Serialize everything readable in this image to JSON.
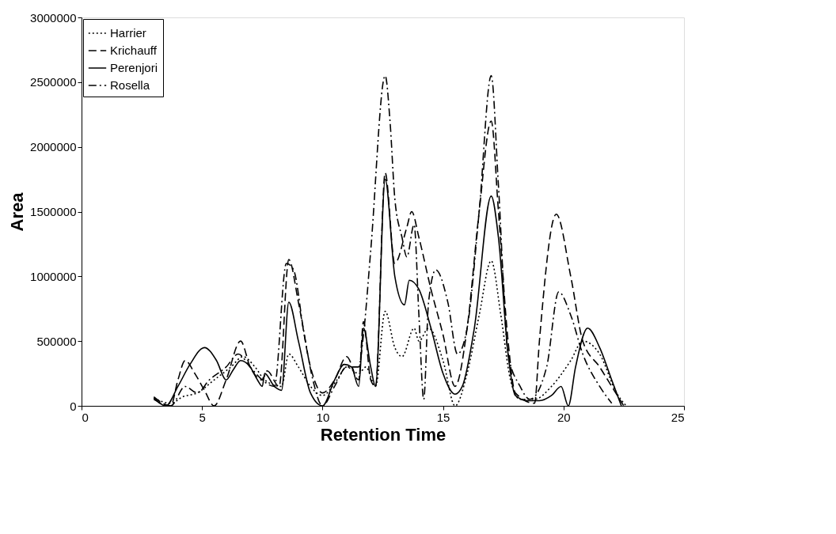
{
  "chart_data": {
    "type": "line",
    "xlabel": "Retention Time",
    "ylabel": "Area",
    "xlim": [
      0,
      25
    ],
    "xticks": [
      0,
      5,
      10,
      15,
      20,
      25
    ],
    "ylim": [
      0,
      3000000
    ],
    "yticks": [
      0,
      500000,
      1000000,
      1500000,
      2000000,
      2500000,
      3000000
    ],
    "grid": false,
    "legend": "top left",
    "marker": "none",
    "series": [
      {
        "name": "Harrier",
        "color": "#000000",
        "line_style": "dotted",
        "x": [
          3.0,
          3.7,
          4.2,
          4.8,
          5.5,
          6.2,
          6.7,
          7.2,
          7.6,
          8.3,
          8.6,
          9.0,
          9.5,
          10.0,
          10.6,
          11.0,
          11.5,
          11.8,
          12.2,
          12.6,
          13.0,
          13.3,
          13.8,
          14.0,
          14.4,
          15.0,
          15.5,
          16.0,
          16.5,
          17.0,
          17.4,
          17.8,
          18.2,
          18.8,
          19.5,
          20.3,
          20.8,
          21.5,
          22.2,
          22.6
        ],
        "values": [
          60000,
          20000,
          70000,
          100000,
          200000,
          300000,
          380000,
          300000,
          200000,
          150000,
          400000,
          300000,
          150000,
          80000,
          200000,
          300000,
          250000,
          300000,
          150000,
          730000,
          450000,
          380000,
          600000,
          500000,
          600000,
          350000,
          0,
          250000,
          700000,
          1120000,
          700000,
          200000,
          50000,
          50000,
          150000,
          350000,
          500000,
          400000,
          100000,
          0
        ]
      },
      {
        "name": "Krichauff",
        "color": "#000000",
        "line_style": "dashed",
        "x": [
          3.0,
          3.7,
          4.0,
          4.3,
          4.7,
          5.1,
          5.5,
          6.0,
          6.6,
          7.0,
          7.5,
          7.7,
          8.2,
          8.6,
          9.0,
          9.5,
          10.0,
          10.5,
          11.0,
          11.5,
          11.7,
          12.0,
          12.2,
          12.6,
          13.0,
          13.5,
          13.7,
          14.0,
          14.5,
          15.0,
          15.5,
          16.0,
          16.5,
          17.0,
          17.3,
          17.7,
          18.0,
          18.8,
          19.0,
          19.7,
          20.3,
          20.8,
          21.5,
          22.0,
          22.5
        ],
        "values": [
          70000,
          0,
          200000,
          350000,
          250000,
          120000,
          0,
          200000,
          500000,
          300000,
          200000,
          270000,
          150000,
          1130000,
          800000,
          300000,
          100000,
          200000,
          380000,
          200000,
          650000,
          200000,
          150000,
          1800000,
          1100000,
          1380000,
          1500000,
          1300000,
          900000,
          550000,
          150000,
          600000,
          1500000,
          2200000,
          1500000,
          500000,
          100000,
          20000,
          500000,
          1480000,
          1000000,
          500000,
          300000,
          150000,
          0
        ]
      },
      {
        "name": "Perenjori",
        "color": "#000000",
        "line_style": "solid",
        "x": [
          3.0,
          3.5,
          4.0,
          4.5,
          5.1,
          5.6,
          6.0,
          6.3,
          6.6,
          7.0,
          7.3,
          7.5,
          7.6,
          8.0,
          8.3,
          8.6,
          9.0,
          9.5,
          10.0,
          10.5,
          10.9,
          11.2,
          11.5,
          11.7,
          12.0,
          12.2,
          12.6,
          13.0,
          13.4,
          13.6,
          14.0,
          14.5,
          15.0,
          15.5,
          15.8,
          16.3,
          17.0,
          17.3,
          17.7,
          18.0,
          18.5,
          19.0,
          19.5,
          19.9,
          20.2,
          20.5,
          21.0,
          21.5,
          22.0,
          22.4
        ],
        "values": [
          60000,
          0,
          150000,
          320000,
          450000,
          350000,
          200000,
          280000,
          350000,
          300000,
          200000,
          150000,
          250000,
          150000,
          120000,
          800000,
          500000,
          100000,
          0,
          200000,
          320000,
          300000,
          150000,
          600000,
          300000,
          150000,
          1750000,
          1000000,
          780000,
          970000,
          900000,
          600000,
          250000,
          90000,
          150000,
          600000,
          1620000,
          1300000,
          400000,
          80000,
          40000,
          40000,
          80000,
          150000,
          0,
          300000,
          600000,
          450000,
          200000,
          0
        ]
      },
      {
        "name": "Rosella",
        "color": "#000000",
        "line_style": "dashdot",
        "x": [
          3.0,
          3.7,
          4.3,
          4.8,
          5.3,
          6.0,
          6.5,
          7.0,
          7.5,
          8.0,
          8.5,
          8.8,
          9.2,
          9.6,
          10.0,
          10.5,
          11.0,
          11.5,
          11.7,
          12.0,
          12.6,
          12.8,
          13.0,
          13.3,
          13.5,
          13.8,
          14.0,
          14.2,
          14.4,
          14.7,
          15.2,
          15.6,
          16.0,
          16.5,
          17.0,
          17.3,
          17.7,
          18.2,
          18.6,
          19.3,
          19.8,
          20.3,
          20.8,
          21.5,
          22.0
        ],
        "values": [
          50000,
          0,
          150000,
          100000,
          200000,
          300000,
          400000,
          300000,
          200000,
          150000,
          1100000,
          1050000,
          600000,
          200000,
          0,
          150000,
          300000,
          300000,
          550000,
          1200000,
          2550000,
          2200000,
          1600000,
          1300000,
          1150000,
          1400000,
          700000,
          50000,
          800000,
          1050000,
          800000,
          400000,
          600000,
          1500000,
          2550000,
          1700000,
          400000,
          150000,
          50000,
          300000,
          880000,
          700000,
          400000,
          150000,
          20000
        ]
      }
    ]
  }
}
